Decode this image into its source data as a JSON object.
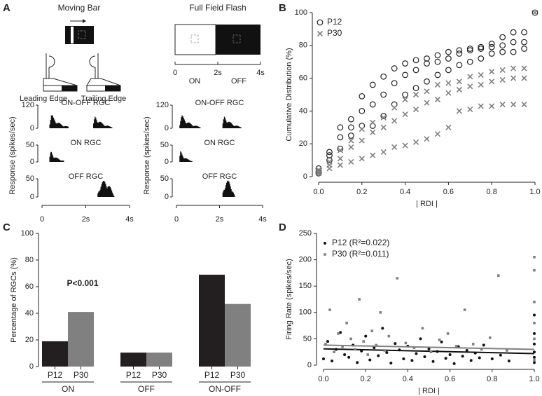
{
  "panel_labels": [
    "A",
    "B",
    "C",
    "D"
  ],
  "panel_a": {
    "moving_bar": {
      "title": "Moving Bar",
      "leading": "Leading Edge",
      "trailing": "Trailing Edge",
      "y_label": "Response (spikes/sec)",
      "rows": [
        {
          "label": "ON-OFF RGC",
          "ticks": [
            "120",
            "0"
          ]
        },
        {
          "label": "ON RGC",
          "ticks": [
            "50",
            "0"
          ]
        },
        {
          "label": "OFF RGC",
          "ticks": [
            "50",
            "0"
          ]
        }
      ],
      "xticks": [
        "0",
        "2s",
        "4s"
      ]
    },
    "full_field_flash": {
      "title": "Full Field Flash",
      "timeline": [
        "0",
        "2s",
        "4s"
      ],
      "on": "ON",
      "off": "OFF",
      "y_label": "Response (spikes/sec)",
      "rows": [
        {
          "label": "ON-OFF RGC",
          "ticks": [
            "120",
            "0"
          ]
        },
        {
          "label": "ON RGC",
          "ticks": [
            "50",
            "0"
          ]
        },
        {
          "label": "OFF RGC",
          "ticks": [
            "50",
            "0"
          ]
        }
      ],
      "xticks": [
        "0",
        "2s",
        "4s"
      ]
    }
  },
  "chart_data": [
    {
      "type": "scatter",
      "y_label": "Cumulative Distribution (%)",
      "x_label": "| RDI |",
      "xlim": [
        0,
        1
      ],
      "ylim": [
        0,
        100
      ],
      "xticks": [
        {
          "value": 0,
          "label": "0.0"
        },
        {
          "value": 0.2,
          "label": "0.2"
        },
        {
          "value": 0.4,
          "label": "0.4"
        },
        {
          "value": 0.6,
          "label": "0.6"
        },
        {
          "value": 0.8,
          "label": "0.8"
        },
        {
          "value": 1,
          "label": "1.0"
        }
      ],
      "yticks": [
        0,
        20,
        40,
        60,
        80,
        100
      ],
      "series": [
        {
          "name": "P12",
          "marker": "circle",
          "color": "#222222",
          "x": [
            0,
            0.05,
            0.1,
            0.15,
            0.2,
            0.25,
            0.3,
            0.35,
            0.4,
            0.45,
            0.5,
            0.55,
            0.6,
            0.65,
            0.7,
            0.75,
            0.8,
            0.85,
            0.9,
            0.95,
            0,
            0.05,
            0.1,
            0.15,
            0.2,
            0.25,
            0.3,
            0.35,
            0.4,
            0.45,
            0.5,
            0.55,
            0.6,
            0.65,
            0.7,
            0.75,
            0.8,
            0.85,
            0.9,
            0.95,
            0,
            0.05,
            0.1,
            0.15,
            0.2,
            0.25,
            0.3,
            0.35,
            0.4,
            0.45,
            0.5,
            0.55,
            0.6,
            0.65,
            0.7,
            0.75,
            0.8,
            0.85,
            0.9,
            0.95,
            1
          ],
          "values": [
            5,
            15,
            30,
            35,
            49,
            56,
            61,
            66,
            69,
            71,
            72,
            74,
            76,
            77,
            78,
            79,
            81,
            85,
            88,
            88,
            3,
            13,
            24,
            30,
            40,
            44,
            50,
            57,
            62,
            65,
            69,
            70,
            72,
            75,
            77,
            78,
            79,
            80,
            82,
            82,
            2,
            10,
            17,
            25,
            31,
            31,
            37,
            44,
            50,
            54,
            58,
            62,
            65,
            68,
            70,
            72,
            75,
            76,
            76,
            78,
            100
          ]
        },
        {
          "name": "P30",
          "marker": "x",
          "color": "#808080",
          "x": [
            0,
            0.05,
            0.1,
            0.15,
            0.2,
            0.25,
            0.3,
            0.35,
            0.4,
            0.45,
            0.5,
            0.55,
            0.6,
            0.65,
            0.7,
            0.75,
            0.8,
            0.85,
            0.9,
            0.95,
            0,
            0.05,
            0.1,
            0.15,
            0.2,
            0.25,
            0.3,
            0.35,
            0.4,
            0.45,
            0.5,
            0.55,
            0.6,
            0.65,
            0.7,
            0.75,
            0.8,
            0.85,
            0.9,
            0.95,
            0,
            0.05,
            0.1,
            0.15,
            0.2,
            0.25,
            0.3,
            0.35,
            0.4,
            0.45,
            0.5,
            0.55,
            0.6,
            0.65,
            0.7,
            0.75,
            0.8,
            0.85,
            0.9,
            0.95,
            1
          ],
          "values": [
            4,
            9,
            16,
            22,
            29,
            33,
            36,
            42,
            47,
            50,
            52,
            56,
            57,
            58,
            61,
            62,
            64,
            65,
            66,
            66,
            3,
            7,
            11,
            18,
            22,
            27,
            30,
            34,
            38,
            41,
            45,
            47,
            51,
            53,
            55,
            56,
            58,
            59,
            60,
            60,
            2,
            5,
            7,
            9,
            11,
            13,
            15,
            18,
            19,
            21,
            23,
            26,
            30,
            40,
            41,
            43,
            43,
            44,
            44,
            44,
            100
          ]
        }
      ]
    },
    {
      "type": "bar",
      "y_label": "Percentage of RGCs (%)",
      "annotation": "P<0.001",
      "categories": [
        "ON",
        "OFF",
        "ON-OFF"
      ],
      "ylim": [
        0,
        100
      ],
      "yticks": [
        0,
        20,
        40,
        60,
        80,
        100
      ],
      "series": [
        {
          "name": "P12",
          "color": "#231f20",
          "values": [
            19,
            10.5,
            69
          ]
        },
        {
          "name": "P30",
          "color": "#808080",
          "values": [
            41,
            10.5,
            47
          ]
        }
      ]
    },
    {
      "type": "scatter",
      "y_label": "Firing Rate (spikes/sec)",
      "x_label": "| RDI |",
      "xlim": [
        0,
        1
      ],
      "ylim": [
        0,
        250
      ],
      "xticks": [
        {
          "value": 0,
          "label": "0.0"
        },
        {
          "value": 0.2,
          "label": "0.2"
        },
        {
          "value": 0.4,
          "label": "0.4"
        },
        {
          "value": 0.6,
          "label": "0.6"
        },
        {
          "value": 0.8,
          "label": "0.8"
        },
        {
          "value": 1,
          "label": "1.0"
        }
      ],
      "yticks": [
        0,
        50,
        100,
        150,
        200,
        250
      ],
      "series": [
        {
          "name": "P12 (R²=0.022)",
          "marker": "dot",
          "color": "#111111",
          "x": [
            0,
            0.02,
            0.04,
            0.06,
            0.08,
            0.1,
            0.12,
            0.14,
            0.16,
            0.18,
            0.2,
            0.22,
            0.24,
            0.26,
            0.28,
            0.3,
            0.32,
            0.34,
            0.36,
            0.38,
            0.4,
            0.42,
            0.44,
            0.46,
            0.48,
            0.5,
            0.52,
            0.54,
            0.56,
            0.58,
            0.6,
            0.62,
            0.64,
            0.66,
            0.68,
            0.7,
            0.72,
            0.74,
            0.76,
            0.8,
            0.84,
            0.88,
            1,
            1,
            1,
            1,
            1,
            1
          ],
          "values": [
            12,
            45,
            8,
            30,
            62,
            20,
            15,
            38,
            5,
            27,
            55,
            10,
            33,
            18,
            70,
            24,
            4,
            41,
            29,
            12,
            36,
            9,
            22,
            50,
            16,
            31,
            7,
            26,
            44,
            13,
            20,
            3,
            35,
            17,
            28,
            9,
            23,
            14,
            38,
            12,
            19,
            8,
            5,
            15,
            25,
            40,
            60,
            95
          ],
          "trend": {
            "x": [
              0,
              1
            ],
            "values": [
              31,
              22
            ]
          }
        },
        {
          "name": "P30 (R²=0.011)",
          "marker": "square",
          "color": "#808080",
          "x": [
            0.01,
            0.03,
            0.05,
            0.07,
            0.09,
            0.11,
            0.13,
            0.15,
            0.17,
            0.19,
            0.21,
            0.23,
            0.25,
            0.27,
            0.29,
            0.31,
            0.35,
            0.39,
            0.43,
            0.47,
            0.51,
            0.55,
            0.59,
            0.63,
            0.67,
            0.71,
            0.75,
            0.79,
            0.83,
            0.87,
            1,
            1,
            1,
            1,
            1,
            1
          ],
          "values": [
            40,
            105,
            25,
            60,
            35,
            80,
            50,
            30,
            125,
            45,
            20,
            65,
            38,
            100,
            28,
            55,
            165,
            42,
            33,
            70,
            25,
            48,
            60,
            36,
            105,
            40,
            30,
            52,
            170,
            28,
            10,
            50,
            80,
            120,
            180,
            205
          ],
          "trend": {
            "x": [
              0,
              1
            ],
            "values": [
              38,
              30
            ]
          }
        }
      ]
    }
  ]
}
